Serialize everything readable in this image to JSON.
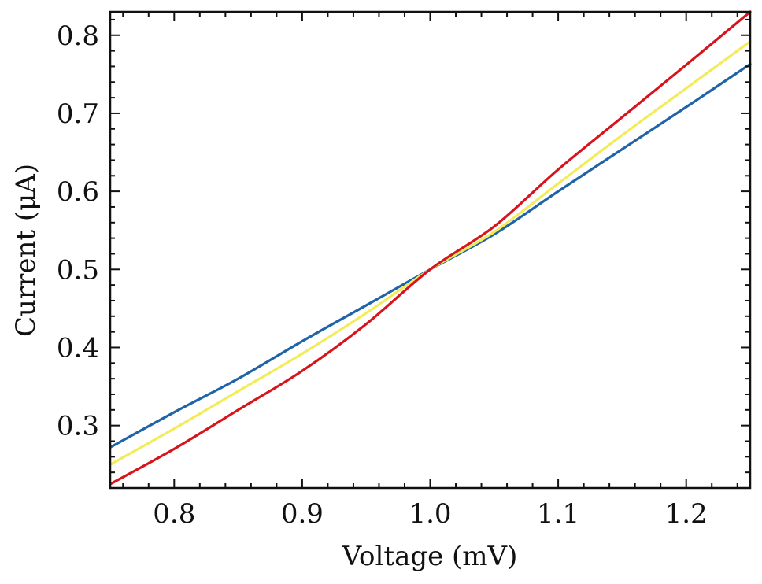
{
  "chart_data": {
    "type": "line",
    "xlabel": "Voltage (mV)",
    "ylabel": "Current (μA)",
    "xlim": [
      0.75,
      1.25
    ],
    "ylim": [
      0.22,
      0.83
    ],
    "xticks": [
      "0.8",
      "0.9",
      "1.0",
      "1.1",
      "1.2"
    ],
    "yticks": [
      "0.3",
      "0.4",
      "0.5",
      "0.6",
      "0.7",
      "0.8"
    ],
    "x_minor_step": 0.02,
    "y_minor_step": 0.02,
    "grid": false,
    "x": [
      0.75,
      0.8,
      0.85,
      0.9,
      0.95,
      1.0,
      1.05,
      1.1,
      1.15,
      1.2,
      1.25
    ],
    "series": [
      {
        "color": "#1f63a8",
        "values": [
          0.272,
          0.317,
          0.36,
          0.408,
          0.454,
          0.5,
          0.545,
          0.6,
          0.654,
          0.708,
          0.763
        ]
      },
      {
        "color": "#f2ec5a",
        "values": [
          0.25,
          0.296,
          0.344,
          0.392,
          0.444,
          0.5,
          0.548,
          0.61,
          0.672,
          0.732,
          0.792
        ]
      },
      {
        "color": "#d7141c",
        "values": [
          0.225,
          0.27,
          0.32,
          0.37,
          0.43,
          0.5,
          0.555,
          0.628,
          0.695,
          0.762,
          0.83
        ]
      }
    ]
  }
}
